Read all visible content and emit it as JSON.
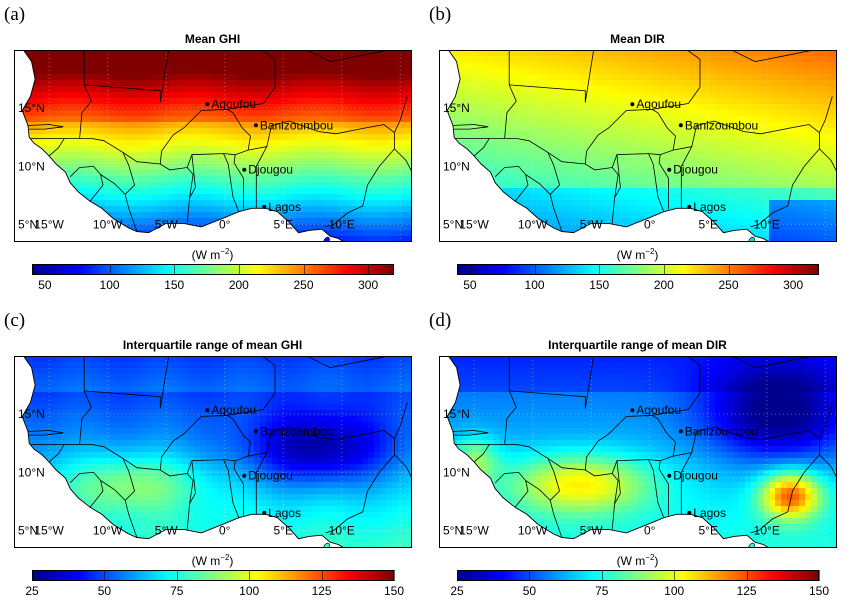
{
  "colors": {
    "jet": [
      "#00008f",
      "#0000ff",
      "#0080ff",
      "#00ffff",
      "#80ff80",
      "#ffff00",
      "#ff8000",
      "#ff0000",
      "#800000"
    ],
    "ocean": "#ffffff",
    "border": "#000000"
  },
  "axes": {
    "lat_labels": [
      "15°N",
      "10°N",
      "5°N"
    ],
    "lon_labels": [
      "15°W",
      "10°W",
      "5°W",
      "0°",
      "5°E",
      "10°E"
    ]
  },
  "cities": [
    {
      "name": "Agoufou",
      "lon": -1.48,
      "lat": 15.34
    },
    {
      "name": "Banizoumbou",
      "lon": 2.66,
      "lat": 13.53
    },
    {
      "name": "Djougou",
      "lon": 1.67,
      "lat": 9.71
    },
    {
      "name": "Lagos",
      "lon": 3.38,
      "lat": 6.52
    }
  ],
  "panels": [
    {
      "label": "(a)",
      "title": "Mean GHI",
      "unit": "(W m",
      "unit_sup": "−2",
      "unit_close": ")",
      "ticks": [
        "50",
        "100",
        "150",
        "200",
        "250",
        "300"
      ],
      "range": [
        40,
        320
      ],
      "tick_values": [
        50,
        100,
        150,
        200,
        250,
        300
      ],
      "field": "ghi"
    },
    {
      "label": "(b)",
      "title": "Mean DIR",
      "unit": "(W m",
      "unit_sup": "−2",
      "unit_close": ")",
      "ticks": [
        "50",
        "100",
        "150",
        "200",
        "250",
        "300"
      ],
      "range": [
        40,
        320
      ],
      "tick_values": [
        50,
        100,
        150,
        200,
        250,
        300
      ],
      "field": "dir"
    },
    {
      "label": "(c)",
      "title": "Interquartile range of mean GHI",
      "unit": "(W m",
      "unit_sup": "−2",
      "unit_close": ")",
      "ticks": [
        "25",
        "50",
        "75",
        "100",
        "125",
        "150"
      ],
      "range": [
        25,
        150
      ],
      "tick_values": [
        25,
        50,
        75,
        100,
        125,
        150
      ],
      "field": "iqr_ghi"
    },
    {
      "label": "(d)",
      "title": "Interquartile range of mean DIR",
      "unit": "(W m",
      "unit_sup": "−2",
      "unit_close": ")",
      "ticks": [
        "25",
        "50",
        "75",
        "100",
        "125",
        "150"
      ],
      "range": [
        25,
        150
      ],
      "tick_values": [
        25,
        50,
        75,
        100,
        125,
        150
      ],
      "field": "iqr_dir"
    }
  ]
}
